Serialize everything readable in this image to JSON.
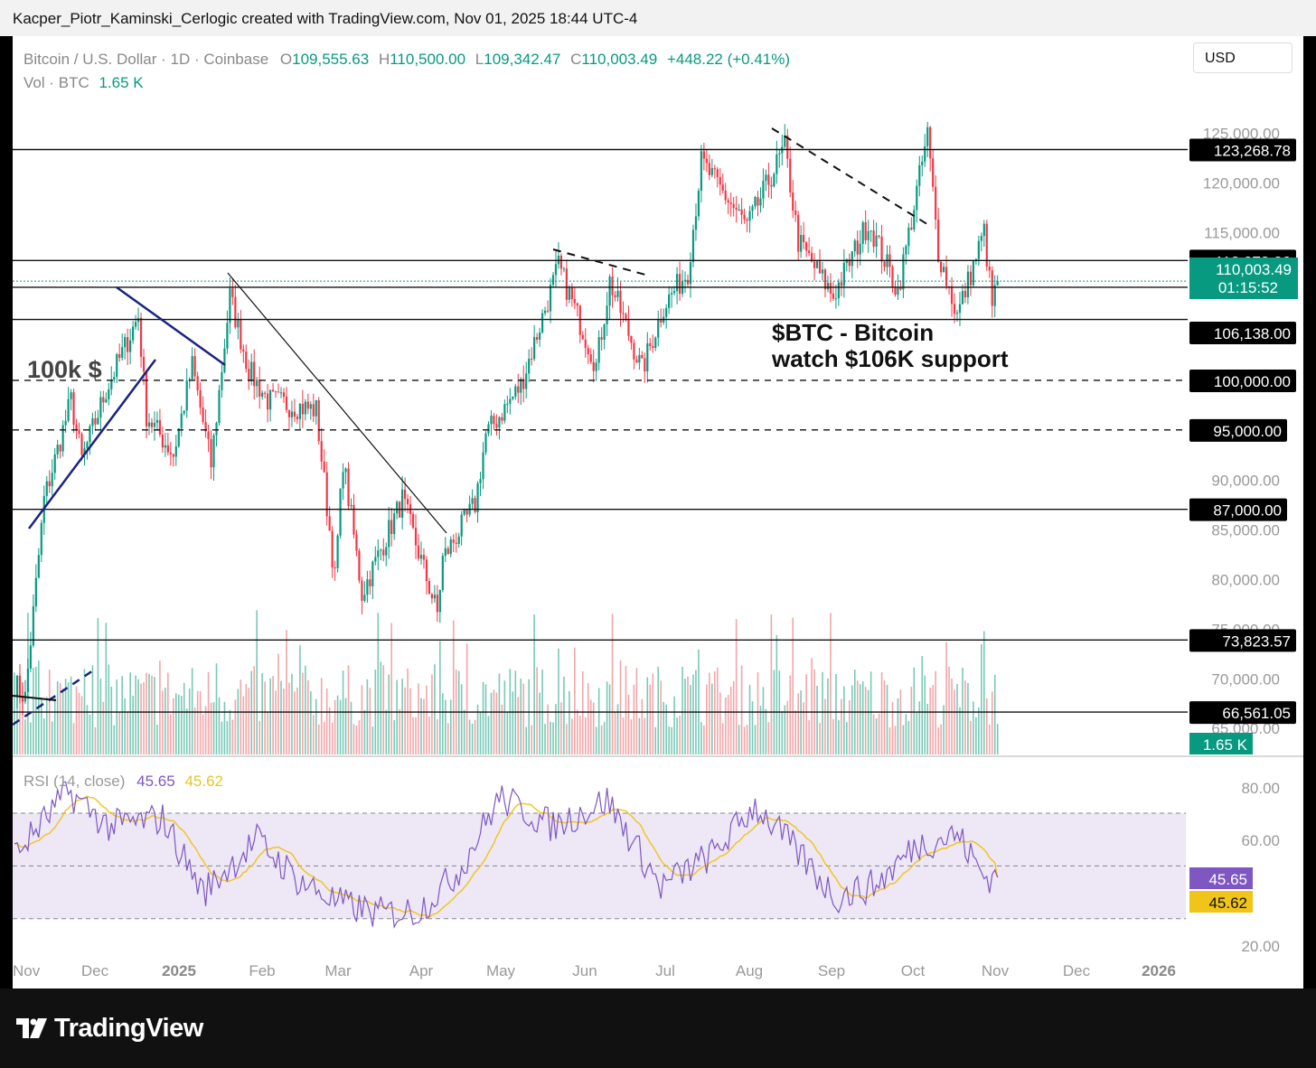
{
  "header": {
    "title": "Kacper_Piotr_Kaminski_Cerlogic created with TradingView.com, Nov 01, 2025 18:44 UTC-4"
  },
  "legend": {
    "symbol": "Bitcoin / U.S. Dollar · 1D · Coinbase",
    "o_label": "O",
    "open": "109,555.63",
    "h_label": "H",
    "high": "110,500.00",
    "l_label": "L",
    "low": "109,342.47",
    "c_label": "C",
    "close": "110,003.49",
    "change": "+448.22 (+0.41%)",
    "vol_label": "Vol · BTC",
    "vol_value": "1.65 K"
  },
  "currency_button": "USD",
  "rsi_legend": {
    "label": "RSI (14, close)",
    "rsi": "45.65",
    "ma": "45.62"
  },
  "colors": {
    "up": "#089981",
    "down": "#f23645",
    "rsi_line": "#7e57c2",
    "rsi_ma": "#f0c419",
    "rsi_band": "#ede7f6"
  },
  "footer": {
    "brand": "TradingView"
  },
  "chart_data": [
    {
      "type": "candlestick",
      "title": "Bitcoin / U.S. Dollar · 1D · Coinbase",
      "ylim": [
        60000,
        127000
      ],
      "y_ticks": [
        "125,000.00",
        "120,000.00",
        "115,000.00",
        "90,000.00",
        "85,000.00",
        "80,000.00",
        "75,000.00",
        "70,000.00",
        "65,000.00"
      ],
      "x_ticks": [
        "Nov",
        "Dec",
        "2025",
        "Feb",
        "Mar",
        "Apr",
        "May",
        "Jun",
        "Jul",
        "Aug",
        "Sep",
        "Oct",
        "Nov",
        "Dec",
        "2026"
      ],
      "price_path": [
        {
          "date": "2024-11-01",
          "price": 69500
        },
        {
          "date": "2024-11-05",
          "price": 68000
        },
        {
          "date": "2024-11-12",
          "price": 88000
        },
        {
          "date": "2024-11-22",
          "price": 98000
        },
        {
          "date": "2024-11-26",
          "price": 92000
        },
        {
          "date": "2024-12-05",
          "price": 99000
        },
        {
          "date": "2024-12-17",
          "price": 106500
        },
        {
          "date": "2024-12-20",
          "price": 96500
        },
        {
          "date": "2024-12-30",
          "price": 92500
        },
        {
          "date": "2025-01-06",
          "price": 101500
        },
        {
          "date": "2025-01-13",
          "price": 91500
        },
        {
          "date": "2025-01-20",
          "price": 108500
        },
        {
          "date": "2025-01-27",
          "price": 101000
        },
        {
          "date": "2025-02-03",
          "price": 98000
        },
        {
          "date": "2025-02-21",
          "price": 97000
        },
        {
          "date": "2025-02-28",
          "price": 80000
        },
        {
          "date": "2025-03-03",
          "price": 92000
        },
        {
          "date": "2025-03-10",
          "price": 78500
        },
        {
          "date": "2025-03-25",
          "price": 88000
        },
        {
          "date": "2025-04-07",
          "price": 76500
        },
        {
          "date": "2025-04-09",
          "price": 82000
        },
        {
          "date": "2025-04-21",
          "price": 87500
        },
        {
          "date": "2025-04-25",
          "price": 94500
        },
        {
          "date": "2025-05-08",
          "price": 99500
        },
        {
          "date": "2025-05-22",
          "price": 111500
        },
        {
          "date": "2025-06-05",
          "price": 101500
        },
        {
          "date": "2025-06-10",
          "price": 110000
        },
        {
          "date": "2025-06-22",
          "price": 101000
        },
        {
          "date": "2025-06-30",
          "price": 107500
        },
        {
          "date": "2025-07-09",
          "price": 111000
        },
        {
          "date": "2025-07-14",
          "price": 122000
        },
        {
          "date": "2025-07-31",
          "price": 115500
        },
        {
          "date": "2025-08-14",
          "price": 123500
        },
        {
          "date": "2025-08-19",
          "price": 114000
        },
        {
          "date": "2025-09-01",
          "price": 108500
        },
        {
          "date": "2025-09-14",
          "price": 116000
        },
        {
          "date": "2025-09-25",
          "price": 109000
        },
        {
          "date": "2025-10-06",
          "price": 124800
        },
        {
          "date": "2025-10-10",
          "price": 113000
        },
        {
          "date": "2025-10-17",
          "price": 106500
        },
        {
          "date": "2025-10-27",
          "price": 115000
        },
        {
          "date": "2025-10-30",
          "price": 107500
        },
        {
          "date": "2025-11-01",
          "price": 110003
        }
      ],
      "horizontal_levels": [
        {
          "price": 123268.78,
          "label": "123,268.78",
          "style": "solid"
        },
        {
          "price": 112078.26,
          "label": "112,078.26",
          "style": "solid"
        },
        {
          "price": 109386.89,
          "label": "109,386.89",
          "style": "solid"
        },
        {
          "price": 106138.0,
          "label": "106,138.00",
          "style": "solid"
        },
        {
          "price": 100000.0,
          "label": "100,000.00",
          "style": "dashed"
        },
        {
          "price": 95000.0,
          "label": "95,000.00",
          "style": "dashed"
        },
        {
          "price": 87000.0,
          "label": "87,000.00",
          "style": "solid"
        },
        {
          "price": 73823.57,
          "label": "73,823.57",
          "style": "solid"
        },
        {
          "price": 66561.05,
          "label": "66,561.05",
          "style": "solid"
        }
      ],
      "last_price": {
        "price": 110003.49,
        "label": "110,003.49",
        "countdown": "01:15:52"
      },
      "volume_last": "1.65 K",
      "annotations": [
        "100k $",
        "$BTC - Bitcoin",
        "watch $106K support"
      ]
    },
    {
      "type": "line",
      "title": "RSI (14, close)",
      "ylim": [
        20,
        85
      ],
      "y_ticks": [
        "80.00",
        "60.00",
        "20.00"
      ],
      "bands": {
        "upper": 70,
        "middle": 50,
        "lower": 30
      },
      "series": [
        {
          "name": "RSI",
          "values_path": [
            [
              0,
              54
            ],
            [
              20,
              78
            ],
            [
              35,
              65
            ],
            [
              55,
              68
            ],
            [
              70,
              40
            ],
            [
              90,
              60
            ],
            [
              105,
              45
            ],
            [
              120,
              36
            ],
            [
              135,
              32
            ],
            [
              150,
              33
            ],
            [
              165,
              48
            ],
            [
              180,
              76
            ],
            [
              200,
              65
            ],
            [
              220,
              75
            ],
            [
              240,
              42
            ],
            [
              260,
              55
            ],
            [
              275,
              73
            ],
            [
              290,
              56
            ],
            [
              305,
              38
            ],
            [
              320,
              43
            ],
            [
              335,
              58
            ],
            [
              350,
              62
            ],
            [
              360,
              46
            ]
          ],
          "last": "45.65"
        },
        {
          "name": "MA",
          "last": "45.62"
        }
      ]
    }
  ]
}
